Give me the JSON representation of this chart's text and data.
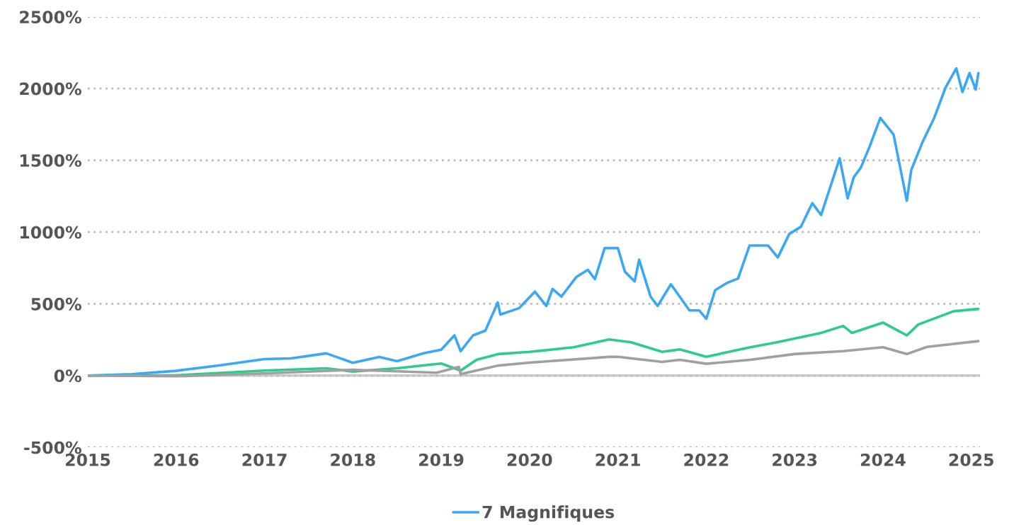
{
  "chart_data": {
    "type": "line",
    "series": [
      {
        "name": "7 Magnifiques",
        "color": "#3aa8f5",
        "x": [
          2015.0,
          2015.5,
          2016.0,
          2016.5,
          2017.0,
          2017.3,
          2017.7,
          2018.0,
          2018.3,
          2018.5,
          2018.8,
          2019.0,
          2019.15,
          2019.22,
          2019.36,
          2019.5,
          2019.64,
          2019.67,
          2019.88,
          2020.06,
          2020.19,
          2020.26,
          2020.36,
          2020.53,
          2020.66,
          2020.74,
          2020.85,
          2021.0,
          2021.08,
          2021.19,
          2021.24,
          2021.37,
          2021.45,
          2021.6,
          2021.81,
          2021.92,
          2022.0,
          2022.1,
          2022.23,
          2022.36,
          2022.49,
          2022.7,
          2022.81,
          2022.94,
          2023.07,
          2023.2,
          2023.3,
          2023.51,
          2023.6,
          2023.67,
          2023.75,
          2023.85,
          2023.97,
          2024.12,
          2024.27,
          2024.32,
          2024.45,
          2024.58,
          2024.71,
          2024.83,
          2024.9,
          2024.98,
          2025.05,
          2025.08
        ],
        "values": [
          0,
          10,
          33,
          72,
          115,
          120,
          155,
          89,
          130,
          100,
          155,
          180,
          280,
          170,
          280,
          313,
          509,
          425,
          469,
          585,
          485,
          603,
          550,
          687,
          737,
          672,
          888,
          888,
          723,
          656,
          807,
          550,
          485,
          636,
          454,
          454,
          395,
          594,
          644,
          676,
          906,
          906,
          823,
          987,
          1036,
          1201,
          1119,
          1514,
          1234,
          1383,
          1449,
          1597,
          1795,
          1680,
          1218,
          1432,
          1630,
          1795,
          2009,
          2141,
          1976,
          2108,
          1993,
          2108
        ]
      },
      {
        "color": "#2ecc8a",
        "x": [
          2015.0,
          2016.0,
          2017.0,
          2017.7,
          2018.0,
          2018.5,
          2019.0,
          2019.22,
          2019.4,
          2019.65,
          2020.0,
          2020.5,
          2020.9,
          2021.15,
          2021.5,
          2021.7,
          2022.0,
          2022.5,
          2022.8,
          2023.3,
          2023.55,
          2023.65,
          2024.0,
          2024.27,
          2024.4,
          2024.8,
          2025.08
        ],
        "values": [
          0,
          2,
          35,
          51,
          28,
          51,
          84,
          35,
          110,
          150,
          165,
          197,
          252,
          232,
          165,
          182,
          131,
          197,
          232,
          297,
          346,
          297,
          369,
          280,
          356,
          448,
          464
        ]
      },
      {
        "color": "#a0a0a0",
        "x": [
          2015.0,
          2016.0,
          2017.0,
          2018.0,
          2018.95,
          2019.2,
          2019.22,
          2019.65,
          2020.0,
          2020.9,
          2021.0,
          2021.5,
          2021.7,
          2022.0,
          2022.5,
          2023.0,
          2023.55,
          2024.0,
          2024.27,
          2024.5,
          2025.08
        ],
        "values": [
          0,
          -5,
          15,
          40,
          20,
          60,
          10,
          70,
          90,
          130,
          131,
          95,
          110,
          82,
          110,
          150,
          170,
          197,
          150,
          200,
          240
        ]
      }
    ],
    "xlim": [
      2015,
      2025.1
    ],
    "xticks": [
      2015,
      2016,
      2017,
      2018,
      2019,
      2020,
      2021,
      2022,
      2023,
      2024,
      2025
    ],
    "ylim": [
      -500,
      2500
    ],
    "yticks": [
      {
        "value": -500,
        "label": "-500%"
      },
      {
        "value": 0,
        "label": "0%"
      },
      {
        "value": 500,
        "label": "500%"
      },
      {
        "value": 1000,
        "label": "1000%"
      },
      {
        "value": 1500,
        "label": "1500%"
      },
      {
        "value": 2000,
        "label": "2000%"
      },
      {
        "value": 2500,
        "label": "2500%"
      }
    ],
    "ref_lines": [
      {
        "axis": "y",
        "value": 0,
        "color": "#cccccc",
        "line_style": "solid"
      }
    ],
    "grid": "y",
    "legend": "bottom",
    "line_style": "solid",
    "marker": "none"
  }
}
